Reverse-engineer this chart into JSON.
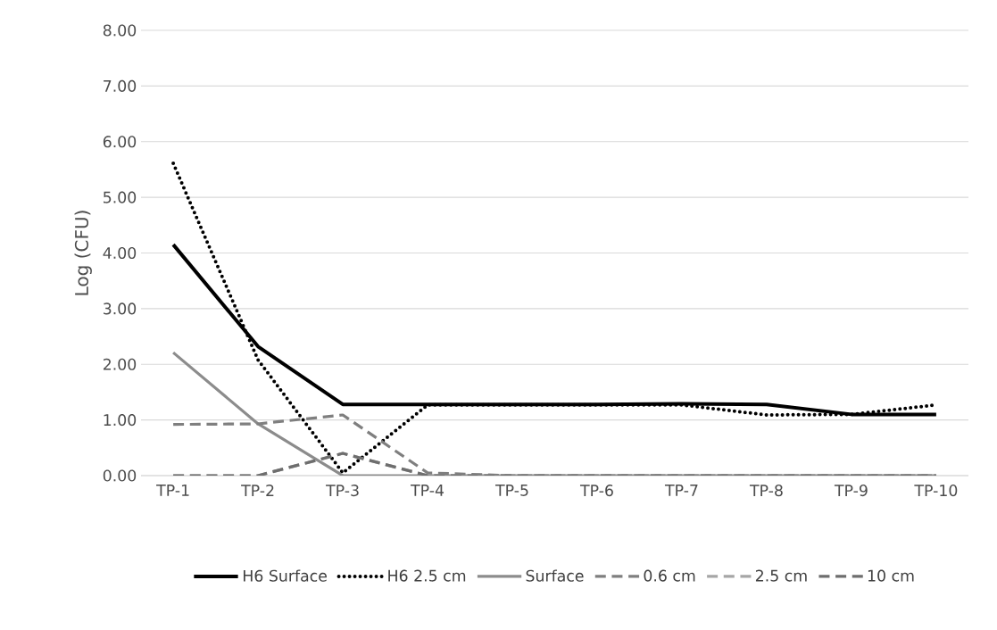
{
  "chart_data": {
    "type": "line",
    "ylabel": "Log (CFU)",
    "categories": [
      "TP-1",
      "TP-2",
      "TP-3",
      "TP-4",
      "TP-5",
      "TP-6",
      "TP-7",
      "TP-8",
      "TP-9",
      "TP-10"
    ],
    "series": [
      {
        "name": "H6 Surface",
        "color": "#000000",
        "line_style": "solid",
        "values": [
          4.15,
          2.32,
          1.28,
          1.28,
          1.28,
          1.28,
          1.29,
          1.28,
          1.1,
          1.1
        ]
      },
      {
        "name": "H6 2.5 cm",
        "color": "#000000",
        "line_style": "dotted",
        "values": [
          5.61,
          2.08,
          0.05,
          1.27,
          1.27,
          1.27,
          1.27,
          1.09,
          1.1,
          1.27
        ]
      },
      {
        "name": "Surface",
        "color": "#8c8c8c",
        "line_style": "solid",
        "values": [
          2.21,
          0.93,
          0,
          0,
          0,
          0,
          0,
          0,
          0,
          0
        ]
      },
      {
        "name": "0.6 cm",
        "color": "#7f7f7f",
        "line_style": "dashed",
        "values": [
          0.92,
          0.93,
          1.09,
          0.05,
          0,
          0,
          0,
          0,
          0,
          0
        ]
      },
      {
        "name": "2.5 cm",
        "color": "#a6a6a6",
        "line_style": "dashed",
        "values": [
          0,
          0,
          0.4,
          0,
          0,
          0,
          0,
          0,
          0,
          0
        ]
      },
      {
        "name": "10 cm",
        "color": "#6e6e6e",
        "line_style": "dashed",
        "values": [
          0,
          0,
          0.4,
          0,
          0,
          0,
          0,
          0,
          0,
          0
        ]
      }
    ],
    "ylim": [
      0,
      8
    ],
    "yticks": [
      {
        "value": 0,
        "label": "0.00"
      },
      {
        "value": 1,
        "label": "1.00"
      },
      {
        "value": 2,
        "label": "2.00"
      },
      {
        "value": 3,
        "label": "3.00"
      },
      {
        "value": 4,
        "label": "4.00"
      },
      {
        "value": 5,
        "label": "5.00"
      },
      {
        "value": 6,
        "label": "6.00"
      },
      {
        "value": 7,
        "label": "7.00"
      },
      {
        "value": 8,
        "label": "8.00"
      }
    ],
    "grid": "y",
    "legend": "bottom"
  }
}
